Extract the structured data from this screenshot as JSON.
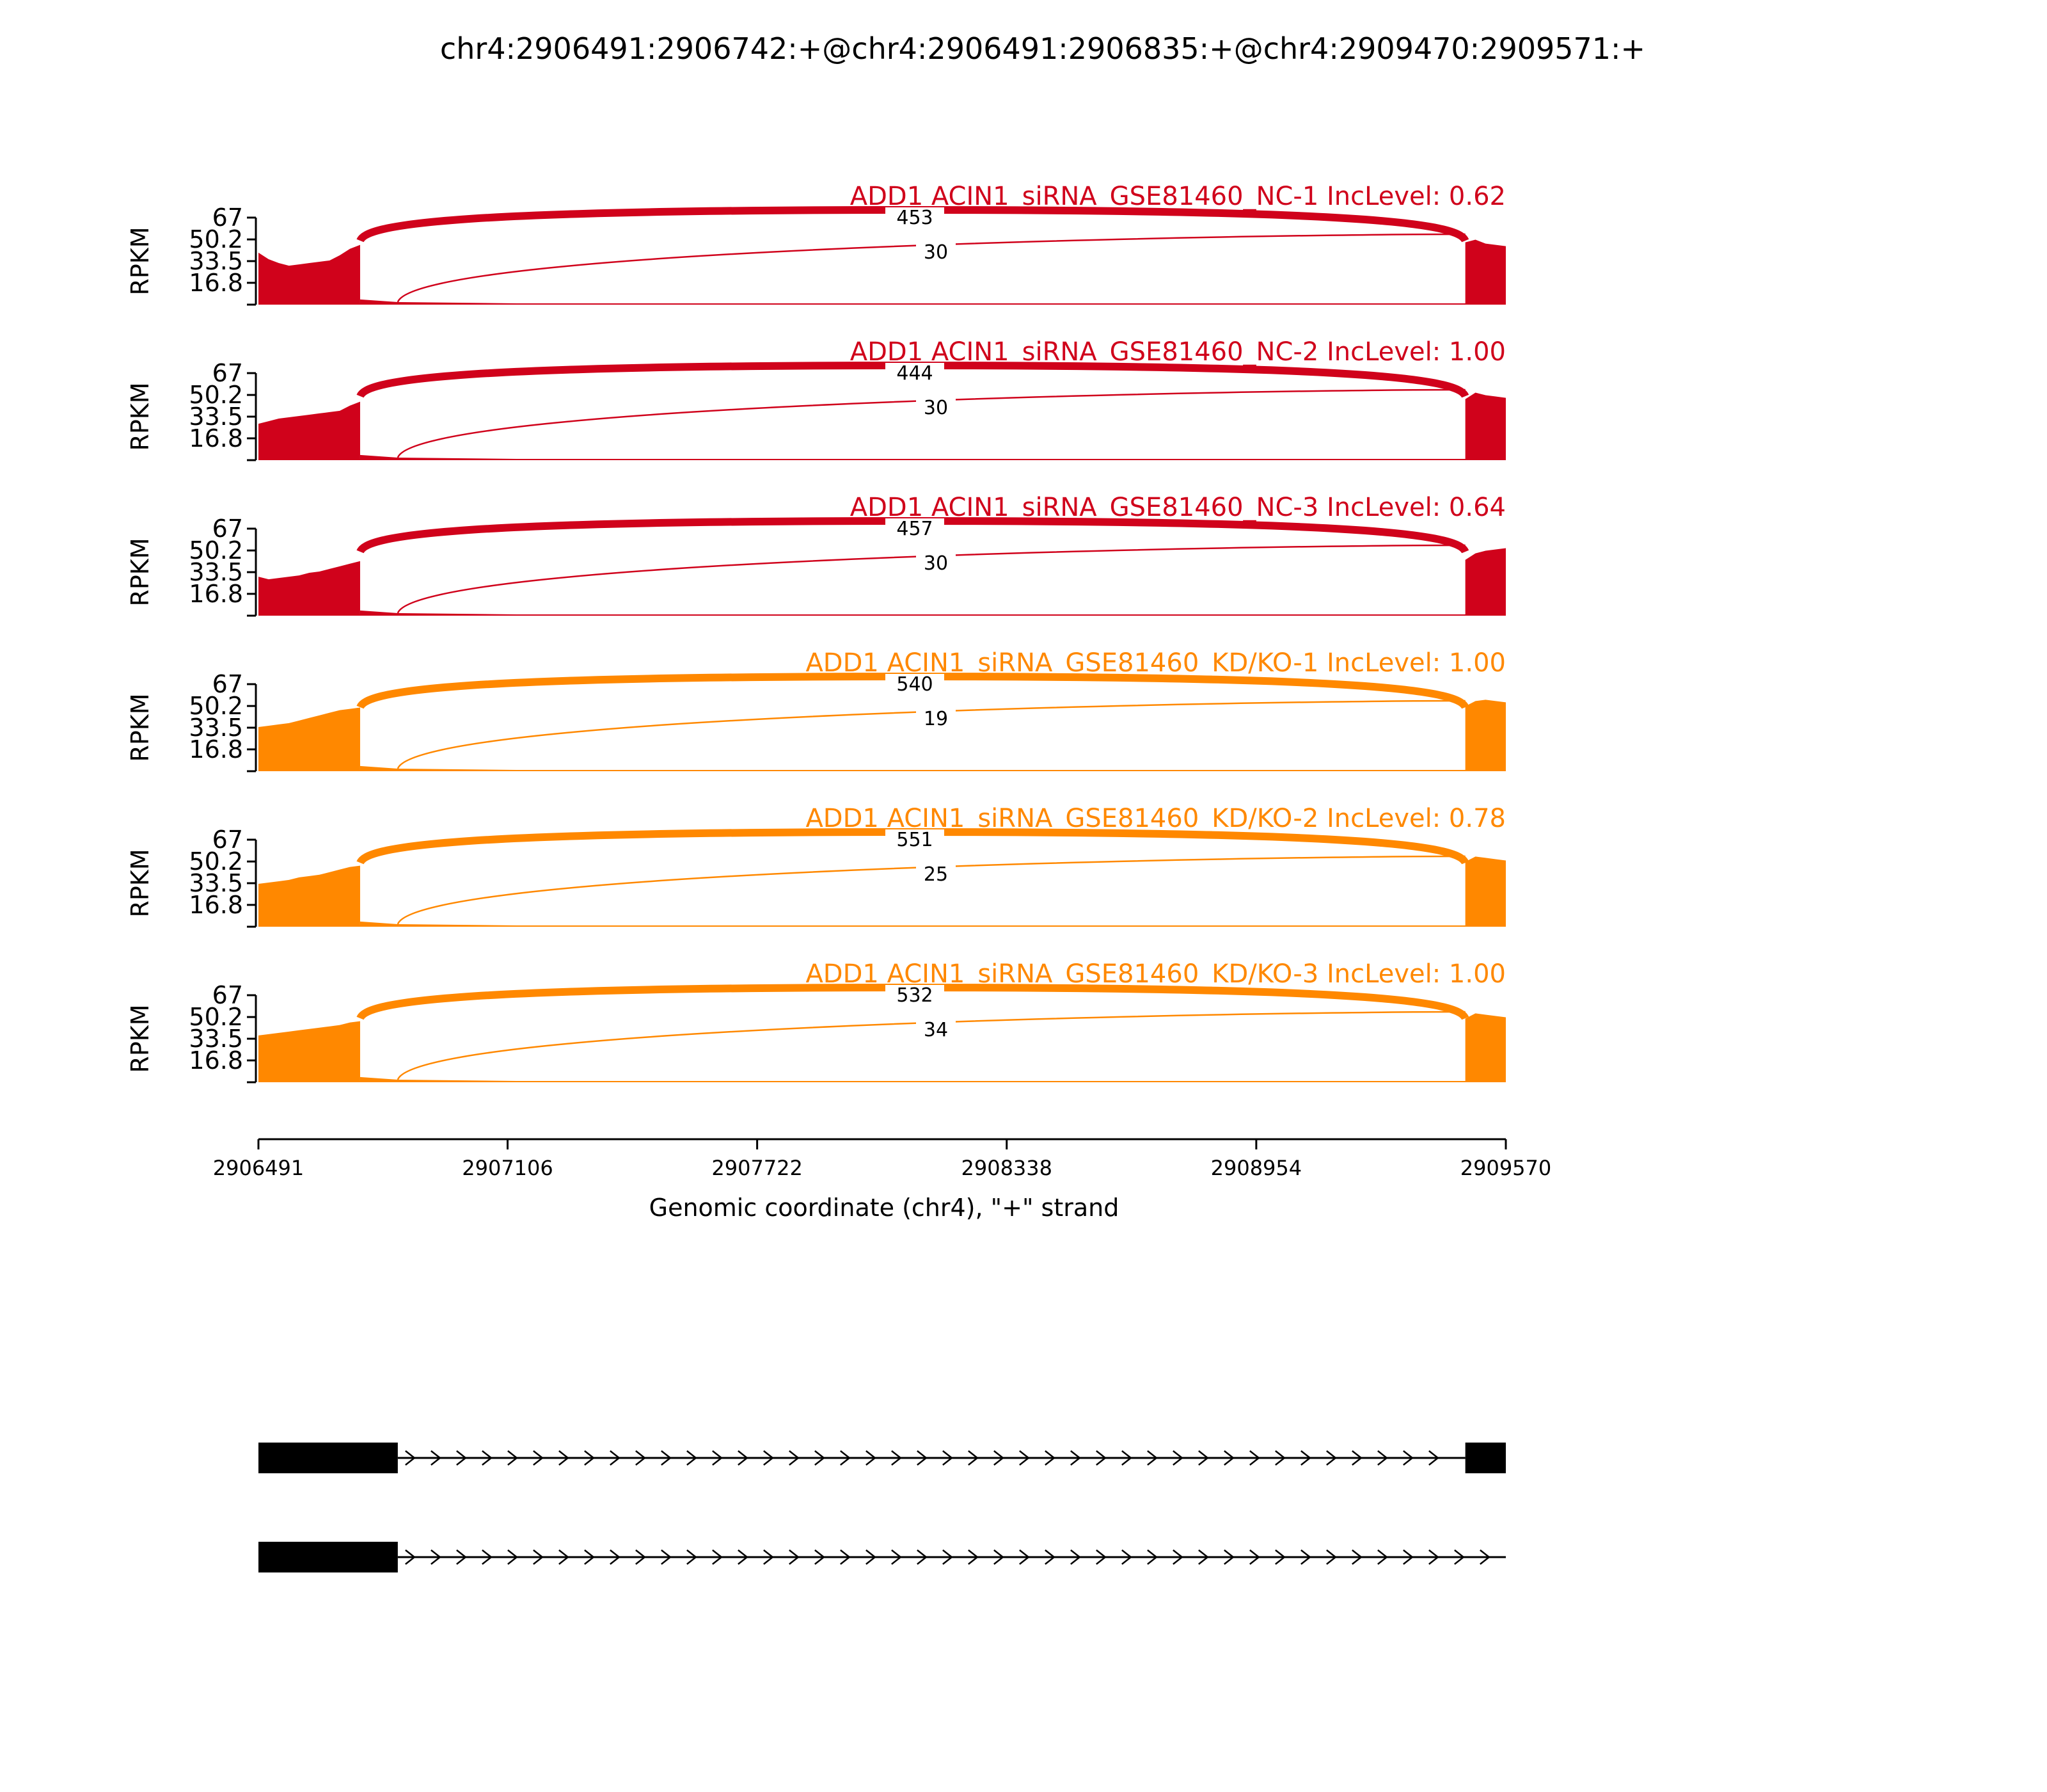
{
  "title": "chr4:2906491:2906742:+@chr4:2906491:2906835:+@chr4:2909470:2909571:+",
  "colors": {
    "nc": "#d0021b",
    "kd": "#ff8800",
    "text": "#000000"
  },
  "chart_data": {
    "type": "area",
    "subtype": "sashimi",
    "title": "chr4:2906491:2906742:+@chr4:2906491:2906835:+@chr4:2909470:2909571:+",
    "xlabel": "Genomic coordinate (chr4), \"+\" strand",
    "ylabel": "RPKM",
    "xlim": [
      2906491,
      2909570
    ],
    "ylim": [
      0,
      67
    ],
    "x_ticks": [
      "2906491",
      "2907106",
      "2907722",
      "2908338",
      "2908954",
      "2909570"
    ],
    "y_ticks": [
      "16.8",
      "33.5",
      "50.2",
      "67"
    ],
    "exons": [
      {
        "start": 2906491,
        "end": 2906742
      },
      {
        "start": 2906742,
        "end": 2906835
      },
      {
        "start": 2909470,
        "end": 2909570
      }
    ],
    "tracks": [
      {
        "label": "ADD1 ACIN1_siRNA_GSE81460_NC-1 IncLevel: 0.62",
        "group": "nc",
        "exon1_profile": [
          40,
          35,
          32,
          30,
          31,
          32,
          33,
          34,
          38,
          43,
          46
        ],
        "exon3_profile": [
          48,
          50,
          47,
          46,
          45
        ],
        "junctions": [
          {
            "from": 2906742,
            "to": 2909470,
            "count": "453"
          },
          {
            "from": 2906835,
            "to": 2909470,
            "count": "30"
          }
        ]
      },
      {
        "label": "ADD1 ACIN1_siRNA_GSE81460_NC-2 IncLevel: 1.00",
        "group": "nc",
        "exon1_profile": [
          28,
          30,
          32,
          33,
          34,
          35,
          36,
          37,
          38,
          42,
          45
        ],
        "exon3_profile": [
          47,
          52,
          50,
          49,
          48
        ],
        "junctions": [
          {
            "from": 2906742,
            "to": 2909470,
            "count": "444"
          },
          {
            "from": 2906835,
            "to": 2909470,
            "count": "30"
          }
        ]
      },
      {
        "label": "ADD1 ACIN1_siRNA_GSE81460_NC-3 IncLevel: 0.64",
        "group": "nc",
        "exon1_profile": [
          30,
          28,
          29,
          30,
          31,
          33,
          34,
          36,
          38,
          40,
          42
        ],
        "exon3_profile": [
          43,
          48,
          50,
          51,
          52
        ],
        "junctions": [
          {
            "from": 2906742,
            "to": 2909470,
            "count": "457"
          },
          {
            "from": 2906835,
            "to": 2909470,
            "count": "30"
          }
        ]
      },
      {
        "label": "ADD1 ACIN1_siRNA_GSE81460_KD/KO-1 IncLevel: 1.00",
        "group": "kd",
        "exon1_profile": [
          34,
          35,
          36,
          37,
          39,
          41,
          43,
          45,
          47,
          48,
          49
        ],
        "exon3_profile": [
          50,
          54,
          55,
          54,
          53
        ],
        "junctions": [
          {
            "from": 2906742,
            "to": 2909470,
            "count": "540"
          },
          {
            "from": 2906835,
            "to": 2909470,
            "count": "19"
          }
        ]
      },
      {
        "label": "ADD1 ACIN1_siRNA_GSE81460_KD/KO-2 IncLevel: 0.78",
        "group": "kd",
        "exon1_profile": [
          33,
          34,
          35,
          36,
          38,
          39,
          40,
          42,
          44,
          46,
          47
        ],
        "exon3_profile": [
          50,
          54,
          53,
          52,
          51
        ],
        "junctions": [
          {
            "from": 2906742,
            "to": 2909470,
            "count": "551"
          },
          {
            "from": 2906835,
            "to": 2909470,
            "count": "25"
          }
        ]
      },
      {
        "label": "ADD1 ACIN1_siRNA_GSE81460_KD/KO-3 IncLevel: 1.00",
        "group": "kd",
        "exon1_profile": [
          36,
          37,
          38,
          39,
          40,
          41,
          42,
          43,
          44,
          46,
          47
        ],
        "exon3_profile": [
          49,
          53,
          52,
          51,
          50
        ],
        "junctions": [
          {
            "from": 2906742,
            "to": 2909470,
            "count": "532"
          },
          {
            "from": 2906835,
            "to": 2909470,
            "count": "34"
          }
        ]
      }
    ],
    "isoforms": [
      {
        "exons": [
          [
            2906491,
            2906835
          ],
          [
            2909470,
            2909570
          ]
        ],
        "intron_to": 2909470
      },
      {
        "exons": [
          [
            2906491,
            2906835
          ]
        ],
        "intron_to": 2909570
      }
    ]
  }
}
